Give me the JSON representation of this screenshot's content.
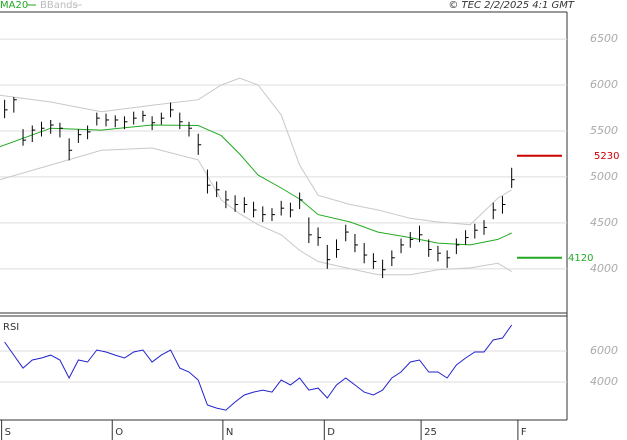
{
  "chart_data": {
    "type": "stock",
    "header": "© TEC 2/2/2025 4:1 GMT",
    "bar_color": "#000000",
    "x": [
      1,
      3,
      5,
      7,
      9,
      11,
      13,
      15,
      17,
      19,
      21,
      23,
      25,
      27,
      29,
      31,
      33,
      35,
      37,
      39,
      41,
      43,
      45,
      47,
      49,
      51,
      53,
      55,
      57,
      59,
      61,
      63,
      65,
      67,
      69,
      71,
      73,
      75,
      77,
      79,
      81,
      83,
      85,
      87,
      89,
      91,
      93,
      95,
      97,
      99,
      101,
      103,
      105,
      107,
      109,
      111
    ],
    "high": [
      5840,
      5870,
      5520,
      5560,
      5600,
      5620,
      5590,
      5420,
      5520,
      5560,
      5700,
      5690,
      5670,
      5660,
      5710,
      5720,
      5660,
      5700,
      5810,
      5700,
      5600,
      5470,
      5080,
      4950,
      4850,
      4800,
      4780,
      4730,
      4680,
      4660,
      4740,
      4720,
      4830,
      4560,
      4450,
      4260,
      4320,
      4480,
      4380,
      4280,
      4170,
      4100,
      4200,
      4330,
      4400,
      4470,
      4320,
      4250,
      4200,
      4330,
      4420,
      4490,
      4530,
      4720,
      4790,
      5100
    ],
    "low": [
      5640,
      5700,
      5340,
      5380,
      5440,
      5470,
      5430,
      5180,
      5370,
      5410,
      5560,
      5550,
      5540,
      5520,
      5570,
      5600,
      5510,
      5570,
      5650,
      5520,
      5440,
      5240,
      4820,
      4780,
      4660,
      4620,
      4610,
      4560,
      4510,
      4520,
      4580,
      4560,
      4650,
      4280,
      4250,
      4000,
      4120,
      4300,
      4180,
      4060,
      4000,
      3900,
      4030,
      4170,
      4230,
      4290,
      4130,
      4080,
      4010,
      4160,
      4260,
      4330,
      4370,
      4540,
      4600,
      4880
    ],
    "close": [
      5730,
      5840,
      5400,
      5510,
      5530,
      5565,
      5530,
      5290,
      5460,
      5490,
      5640,
      5620,
      5620,
      5600,
      5640,
      5670,
      5590,
      5640,
      5730,
      5600,
      5530,
      5350,
      4910,
      4860,
      4750,
      4700,
      4700,
      4640,
      4590,
      4590,
      4660,
      4640,
      4750,
      4370,
      4340,
      4100,
      4210,
      4400,
      4260,
      4150,
      4080,
      3990,
      4120,
      4260,
      4320,
      4370,
      4210,
      4170,
      4120,
      4260,
      4340,
      4420,
      4450,
      4640,
      4700,
      4970
    ],
    "series": [
      {
        "name": "MA20",
        "color": "#22aa22",
        "x": [
          0,
          11,
          22,
          33,
          43,
          48,
          52,
          56,
          61,
          65,
          69,
          76,
          82,
          89,
          95,
          102,
          108,
          111
        ],
        "values": [
          5330,
          5530,
          5510,
          5565,
          5560,
          5450,
          5250,
          5020,
          4880,
          4760,
          4590,
          4510,
          4400,
          4340,
          4280,
          4260,
          4320,
          4390
        ]
      },
      {
        "name": "BBands",
        "color": "#c8c8c8",
        "x": [
          0,
          11,
          22,
          33,
          43,
          48,
          52,
          56,
          61,
          65,
          69,
          76,
          82,
          89,
          95,
          102,
          108,
          111
        ],
        "values": [
          5890,
          5815,
          5710,
          5780,
          5840,
          6000,
          6075,
          6000,
          5675,
          5130,
          4800,
          4700,
          4640,
          4550,
          4510,
          4480,
          4770,
          4860
        ],
        "lower": [
          4970,
          5130,
          5290,
          5315,
          5185,
          4750,
          4600,
          4480,
          4370,
          4200,
          4080,
          4000,
          3935,
          3935,
          3990,
          4010,
          4060,
          3970
        ]
      }
    ],
    "levels": [
      {
        "value": 5230,
        "color": "#cc0000"
      },
      {
        "value": 4120,
        "color": "#22aa22"
      }
    ],
    "xlim": [
      0,
      123
    ],
    "xticks": [
      {
        "value": 1,
        "label": "S"
      },
      {
        "value": 25,
        "label": "O"
      },
      {
        "value": 49,
        "label": "N"
      },
      {
        "value": 71,
        "label": "D"
      },
      {
        "value": 92,
        "label": "25"
      },
      {
        "value": 113,
        "label": "F"
      }
    ],
    "ylim": [
      3530,
      6795
    ],
    "yticks": [
      6500,
      6000,
      5500,
      5000,
      4500,
      4000
    ],
    "grid": true,
    "rsi": {
      "title": "RSI",
      "color": "#2222cc",
      "values": [
        6580,
        5740,
        4900,
        5420,
        5550,
        5740,
        5420,
        4260,
        5420,
        5290,
        6065,
        5935,
        5740,
        5550,
        5935,
        6065,
        5290,
        5740,
        6065,
        4900,
        4650,
        4130,
        2520,
        2320,
        2190,
        2710,
        3160,
        3350,
        3480,
        3350,
        4130,
        3810,
        4260,
        3480,
        3610,
        2970,
        3810,
        4260,
        3810,
        3350,
        3160,
        3480,
        4260,
        4650,
        5290,
        5420,
        4650,
        4650,
        4260,
        5100,
        5550,
        5935,
        5935,
        6710,
        6840,
        7680
      ],
      "ylim": [
        1550,
        8260
      ],
      "yticks": [
        6000,
        4000
      ]
    }
  }
}
